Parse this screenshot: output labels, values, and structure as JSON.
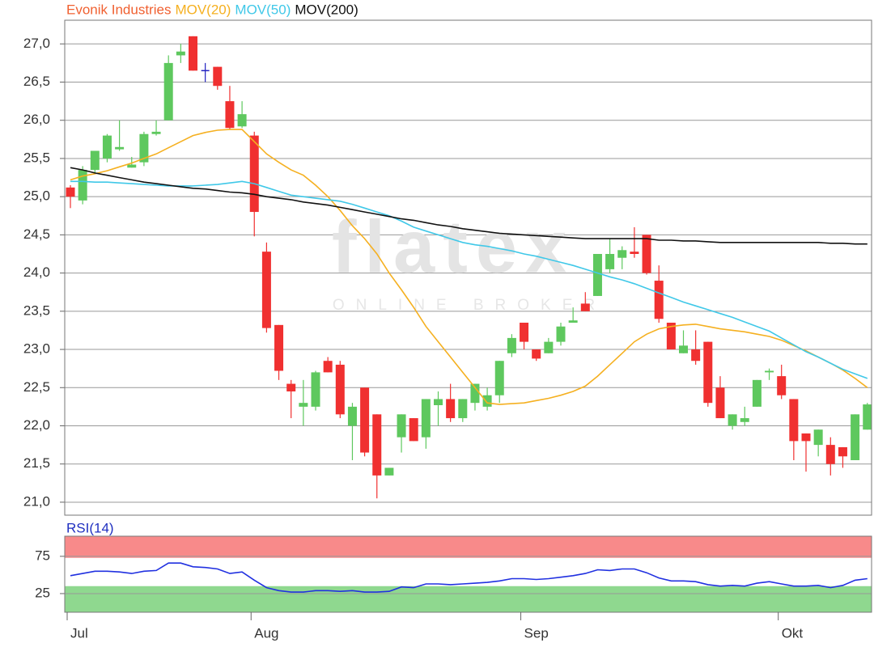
{
  "chart_data": [
    {
      "type": "candlestick",
      "watermark": "flatex",
      "watermark_sub": "ONLINE BROKER",
      "ylim": [
        20.83,
        27.31
      ],
      "yticks": [
        {
          "value": 21.0,
          "label": "21,0"
        },
        {
          "value": 21.5,
          "label": "21,5"
        },
        {
          "value": 22.0,
          "label": "22,0"
        },
        {
          "value": 22.5,
          "label": "22,5"
        },
        {
          "value": 23.0,
          "label": "23,0"
        },
        {
          "value": 23.5,
          "label": "23,5"
        },
        {
          "value": 24.0,
          "label": "24,0"
        },
        {
          "value": 24.5,
          "label": "24,5"
        },
        {
          "value": 25.0,
          "label": "25,0"
        },
        {
          "value": 25.5,
          "label": "25,5"
        },
        {
          "value": 26.0,
          "label": "26,0"
        },
        {
          "value": 26.5,
          "label": "26,5"
        },
        {
          "value": 27.0,
          "label": "27,0"
        }
      ],
      "grid": true,
      "candles": {
        "name": "Evonik Industries",
        "color": "#f06030",
        "up_color": "#5ec85e",
        "down_color": "#f03030",
        "doji_color": "#2020c0",
        "open": [
          25.12,
          24.95,
          25.35,
          25.5,
          25.62,
          25.38,
          25.45,
          25.82,
          26.0,
          26.85,
          27.1,
          26.65,
          26.7,
          26.25,
          25.92,
          25.8,
          24.28,
          23.32,
          22.55,
          22.25,
          22.25,
          22.85,
          22.8,
          22.0,
          22.5,
          22.15,
          21.35,
          21.85,
          22.1,
          21.85,
          22.27,
          22.35,
          22.1,
          22.3,
          22.25,
          22.4,
          22.95,
          23.35,
          23.0,
          22.95,
          23.1,
          23.35,
          23.6,
          23.7,
          24.05,
          24.2,
          24.28,
          24.5,
          23.9,
          23.35,
          22.95,
          23.0,
          23.1,
          22.5,
          22.0,
          22.05,
          22.25,
          22.7,
          22.65,
          22.35,
          21.9,
          21.75,
          21.75,
          21.72,
          21.55,
          21.95
        ],
        "high": [
          25.15,
          25.4,
          25.6,
          25.82,
          26.0,
          25.52,
          25.85,
          26.0,
          26.85,
          27.0,
          27.1,
          26.75,
          26.7,
          26.45,
          26.25,
          25.85,
          24.4,
          23.32,
          22.6,
          22.6,
          22.72,
          22.9,
          22.85,
          22.3,
          22.5,
          22.15,
          21.45,
          22.15,
          22.1,
          22.35,
          22.45,
          22.55,
          22.35,
          22.55,
          22.5,
          22.85,
          23.2,
          23.35,
          23.0,
          23.15,
          23.35,
          23.55,
          23.75,
          24.25,
          24.45,
          24.35,
          24.6,
          24.5,
          24.1,
          23.35,
          23.25,
          23.25,
          23.1,
          22.65,
          22.15,
          22.25,
          22.6,
          22.75,
          22.8,
          22.35,
          21.9,
          21.95,
          21.85,
          21.72,
          22.15,
          22.3
        ],
        "low": [
          24.85,
          24.9,
          25.3,
          25.45,
          25.6,
          25.38,
          25.4,
          25.8,
          26.0,
          26.75,
          26.65,
          26.5,
          26.4,
          25.88,
          25.9,
          24.48,
          23.22,
          22.6,
          22.1,
          22.0,
          22.2,
          22.7,
          22.1,
          21.55,
          21.6,
          21.05,
          21.35,
          21.65,
          21.8,
          21.7,
          22.0,
          22.05,
          22.05,
          22.2,
          22.2,
          22.3,
          22.9,
          23.0,
          22.85,
          22.95,
          23.05,
          23.35,
          23.5,
          23.7,
          24.0,
          24.05,
          24.2,
          23.98,
          23.35,
          23.0,
          22.95,
          22.8,
          22.25,
          22.1,
          21.95,
          22.0,
          22.25,
          22.6,
          22.35,
          21.55,
          21.4,
          21.6,
          21.35,
          21.45,
          21.55,
          21.95
        ],
        "close": [
          25.0,
          25.35,
          25.6,
          25.8,
          25.65,
          25.42,
          25.82,
          25.85,
          26.75,
          26.9,
          26.65,
          26.65,
          26.45,
          25.9,
          26.08,
          24.8,
          23.28,
          22.72,
          22.45,
          22.3,
          22.7,
          22.7,
          22.15,
          22.25,
          21.65,
          21.35,
          21.45,
          22.15,
          21.8,
          22.35,
          22.35,
          22.1,
          22.35,
          22.55,
          22.4,
          22.85,
          23.15,
          23.1,
          22.88,
          23.1,
          23.3,
          23.38,
          23.5,
          24.25,
          24.25,
          24.3,
          24.25,
          24.0,
          23.4,
          23.0,
          23.05,
          22.85,
          22.3,
          22.1,
          22.15,
          22.1,
          22.6,
          22.72,
          22.4,
          21.8,
          21.8,
          21.95,
          21.5,
          21.6,
          22.15,
          22.28
        ]
      },
      "series": [
        {
          "name": "MOV(20)",
          "color": "#f5b020",
          "values": [
            25.22,
            25.27,
            25.3,
            25.34,
            25.39,
            25.44,
            25.5,
            25.56,
            25.64,
            25.72,
            25.8,
            25.84,
            25.87,
            25.88,
            25.88,
            25.72,
            25.56,
            25.45,
            25.35,
            25.28,
            25.15,
            25.0,
            24.82,
            24.62,
            24.45,
            24.25,
            24.0,
            23.78,
            23.55,
            23.3,
            23.1,
            22.9,
            22.7,
            22.5,
            22.3,
            22.28,
            22.29,
            22.3,
            22.33,
            22.36,
            22.4,
            22.45,
            22.52,
            22.65,
            22.8,
            22.95,
            23.1,
            23.2,
            23.27,
            23.3,
            23.32,
            23.33,
            23.3,
            23.27,
            23.25,
            23.23,
            23.2,
            23.17,
            23.12,
            23.05,
            22.98,
            22.9,
            22.82,
            22.73,
            22.62,
            22.5
          ]
        },
        {
          "name": "MOV(50)",
          "color": "#40c8e8",
          "values": [
            25.2,
            25.2,
            25.19,
            25.19,
            25.18,
            25.17,
            25.16,
            25.15,
            25.14,
            25.14,
            25.14,
            25.15,
            25.16,
            25.18,
            25.2,
            25.17,
            25.12,
            25.07,
            25.02,
            25.0,
            24.98,
            24.96,
            24.94,
            24.9,
            24.85,
            24.8,
            24.75,
            24.68,
            24.6,
            24.55,
            24.5,
            24.45,
            24.4,
            24.37,
            24.35,
            24.32,
            24.29,
            24.25,
            24.22,
            24.18,
            24.14,
            24.1,
            24.05,
            24.0,
            23.95,
            23.91,
            23.86,
            23.8,
            23.74,
            23.68,
            23.62,
            23.57,
            23.52,
            23.47,
            23.42,
            23.36,
            23.3,
            23.24,
            23.15,
            23.06,
            22.97,
            22.9,
            22.82,
            22.74,
            22.68,
            22.62
          ]
        },
        {
          "name": "MOV(200)",
          "color": "#111111",
          "values": [
            25.38,
            25.35,
            25.31,
            25.28,
            25.25,
            25.22,
            25.19,
            25.17,
            25.15,
            25.13,
            25.11,
            25.1,
            25.08,
            25.06,
            25.05,
            25.03,
            25.0,
            24.98,
            24.96,
            24.93,
            24.91,
            24.89,
            24.86,
            24.83,
            24.8,
            24.77,
            24.74,
            24.71,
            24.69,
            24.66,
            24.63,
            24.61,
            24.58,
            24.56,
            24.54,
            24.52,
            24.51,
            24.5,
            24.49,
            24.48,
            24.47,
            24.46,
            24.45,
            24.45,
            24.45,
            24.45,
            24.45,
            24.45,
            24.43,
            24.43,
            24.42,
            24.42,
            24.41,
            24.4,
            24.4,
            24.4,
            24.4,
            24.4,
            24.4,
            24.4,
            24.4,
            24.4,
            24.39,
            24.39,
            24.38,
            24.38
          ]
        }
      ]
    },
    {
      "type": "line",
      "title": "RSI(14)",
      "ylim": [
        0,
        102
      ],
      "yticks": [
        25,
        75
      ],
      "grid": true,
      "bands": [
        {
          "from": 73,
          "to": 102,
          "color": "#f88a8a"
        },
        {
          "from": 0,
          "to": 35,
          "color": "#8fd88f"
        }
      ],
      "categories": [
        "Jul",
        null,
        null,
        null,
        null,
        null,
        null,
        null,
        null,
        null,
        null,
        null,
        null,
        null,
        null,
        "Aug",
        null,
        null,
        null,
        null,
        null,
        null,
        null,
        null,
        null,
        null,
        null,
        null,
        null,
        null,
        null,
        null,
        null,
        null,
        null,
        null,
        null,
        "Sep",
        null,
        null,
        null,
        null,
        null,
        null,
        null,
        null,
        null,
        null,
        null,
        null,
        null,
        null,
        null,
        null,
        null,
        null,
        null,
        null,
        "Okt",
        null,
        null,
        null,
        null,
        null,
        null,
        null
      ],
      "series": [
        {
          "name": "RSI(14)",
          "color": "#2030e0",
          "values": [
            49,
            52,
            55,
            55,
            54,
            52,
            55,
            56,
            66,
            66,
            61,
            60,
            58,
            52,
            54,
            43,
            33,
            29,
            27,
            27,
            29,
            29,
            28,
            29,
            27,
            27,
            28,
            34,
            33,
            38,
            38,
            37,
            38,
            39,
            40,
            42,
            45,
            45,
            44,
            45,
            47,
            49,
            52,
            57,
            56,
            58,
            58,
            53,
            46,
            42,
            42,
            41,
            37,
            35,
            36,
            35,
            39,
            41,
            38,
            35,
            35,
            36,
            33,
            36,
            43,
            45
          ]
        }
      ]
    }
  ]
}
